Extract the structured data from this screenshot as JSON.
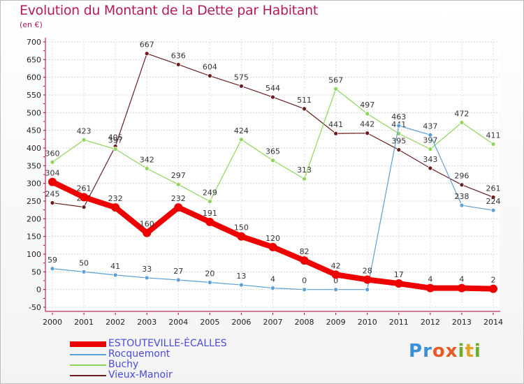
{
  "title": "Evolution du Montant de la Dette par Habitant",
  "subtitle": "(en €)",
  "logo": {
    "text": "Proxiti",
    "letters": [
      "P",
      "r",
      "o",
      "x",
      "i",
      "t",
      "i"
    ],
    "colors": [
      "#3b8fd6",
      "#3b8fd6",
      "#e85a24",
      "#e85a24",
      "#6aae2e",
      "#e0a424",
      "#6aae2e"
    ]
  },
  "chart_data": {
    "type": "line",
    "x": [
      "2000",
      "2001",
      "2002",
      "2003",
      "2004",
      "2005",
      "2006",
      "2007",
      "2008",
      "2009",
      "2010",
      "2011",
      "2012",
      "2013",
      "2014"
    ],
    "ylim": [
      -50,
      700
    ],
    "yticks": [
      "-50",
      "0",
      "50",
      "100",
      "150",
      "200",
      "250",
      "300",
      "350",
      "400",
      "450",
      "500",
      "550",
      "600",
      "650",
      "700"
    ],
    "grid": true,
    "legend_position": "bottom-left",
    "series": [
      {
        "name": "Vieux-Manoir",
        "color": "#6b1c1c",
        "width": 1.2,
        "values": [
          245,
          233,
          405,
          667,
          636,
          604,
          575,
          544,
          511,
          441,
          442,
          395,
          343,
          296,
          261
        ],
        "labels": [
          "245",
          "233",
          "405",
          "667",
          "636",
          "604",
          "575",
          "544",
          "511",
          "441",
          "442",
          "395",
          "343",
          "296",
          "261"
        ]
      },
      {
        "name": "Buchy",
        "color": "#8ed65a",
        "width": 1.2,
        "values": [
          360,
          423,
          397,
          342,
          297,
          249,
          424,
          365,
          313,
          567,
          497,
          441,
          397,
          472,
          411
        ],
        "labels": [
          "360",
          "423",
          "397",
          "342",
          "297",
          "249",
          "424",
          "365",
          "313",
          "567",
          "497",
          "441",
          "397",
          "472",
          "411"
        ]
      },
      {
        "name": "Rocquemont",
        "color": "#5a9fd6",
        "width": 1.2,
        "values": [
          59,
          50,
          41,
          33,
          27,
          20,
          13,
          4,
          0,
          0,
          0,
          463,
          437,
          238,
          224
        ],
        "labels": [
          "59",
          "50",
          "41",
          "33",
          "27",
          "20",
          "13",
          "4",
          "0",
          "0",
          "0",
          "463",
          "437",
          "238",
          "224"
        ]
      },
      {
        "name": "ESTOUTEVILLE-ÉCALLES",
        "color": "#ee0000",
        "width": 8,
        "values": [
          304,
          261,
          232,
          160,
          232,
          191,
          150,
          120,
          82,
          42,
          28,
          17,
          4,
          4,
          2
        ],
        "labels": [
          "304",
          "261",
          "232",
          "160",
          "232",
          "191",
          "150",
          "120",
          "82",
          "42",
          "28",
          "17",
          "4",
          "4",
          "2"
        ]
      }
    ],
    "legend": [
      {
        "name": "ESTOUTEVILLE-ÉCALLES",
        "color": "#ee0000",
        "thick": true
      },
      {
        "name": "Rocquemont",
        "color": "#5a9fd6",
        "thick": false
      },
      {
        "name": "Buchy",
        "color": "#8ed65a",
        "thick": false
      },
      {
        "name": "Vieux-Manoir",
        "color": "#6b1c1c",
        "thick": false
      }
    ]
  }
}
